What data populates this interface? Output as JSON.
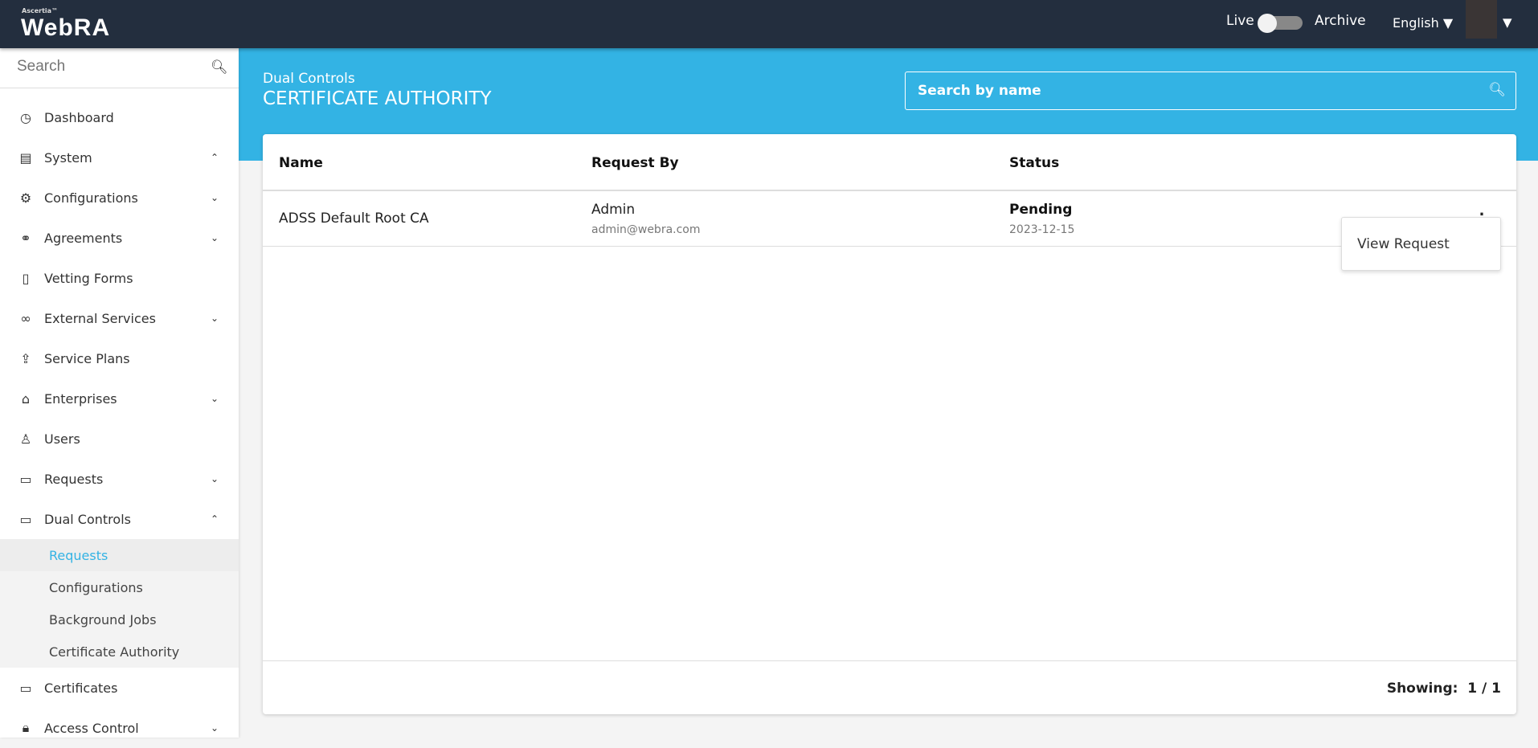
{
  "header": {
    "logo_small": "Ascertia™",
    "logo": "WebRA",
    "live_label": "Live",
    "archive_label": "Archive",
    "archive_enabled": false,
    "language": "English"
  },
  "sidebar": {
    "search_placeholder": "Search",
    "items": [
      {
        "label": "Dashboard",
        "icon": "dashboard-icon"
      },
      {
        "label": "System",
        "icon": "server-icon",
        "chevron": "up"
      },
      {
        "label": "Configurations",
        "icon": "gear-icon",
        "chevron": "down"
      },
      {
        "label": "Agreements",
        "icon": "handshake-icon",
        "chevron": "down"
      },
      {
        "label": "Vetting Forms",
        "icon": "form-icon"
      },
      {
        "label": "External Services",
        "icon": "link-icon",
        "chevron": "down"
      },
      {
        "label": "Service Plans",
        "icon": "plan-icon"
      },
      {
        "label": "Enterprises",
        "icon": "bank-icon",
        "chevron": "down"
      },
      {
        "label": "Users",
        "icon": "user-icon"
      },
      {
        "label": "Requests",
        "icon": "request-icon",
        "chevron": "down"
      },
      {
        "label": "Dual Controls",
        "icon": "dual-control-icon",
        "chevron": "up"
      },
      {
        "label": "Certificates",
        "icon": "certificate-icon"
      },
      {
        "label": "Access Control",
        "icon": "lock-icon",
        "chevron": "down"
      }
    ],
    "sub_items": [
      "Requests",
      "Configurations",
      "Background Jobs",
      "Certificate Authority"
    ]
  },
  "page": {
    "breadcrumb": "Dual Controls",
    "title": "CERTIFICATE AUTHORITY",
    "search_placeholder": "Search by name"
  },
  "table": {
    "columns": [
      "Name",
      "Request By",
      "Status"
    ],
    "rows": [
      {
        "name": "ADSS Default Root CA",
        "request_by": "Admin",
        "email": "admin@webra.com",
        "status": "Pending",
        "date": "2023-12-15"
      }
    ],
    "menu": [
      "View Request"
    ],
    "showing": "Showing:  1 / 1"
  },
  "colors": {
    "accent": "#33b3e4",
    "topbar": "#232e3e"
  }
}
